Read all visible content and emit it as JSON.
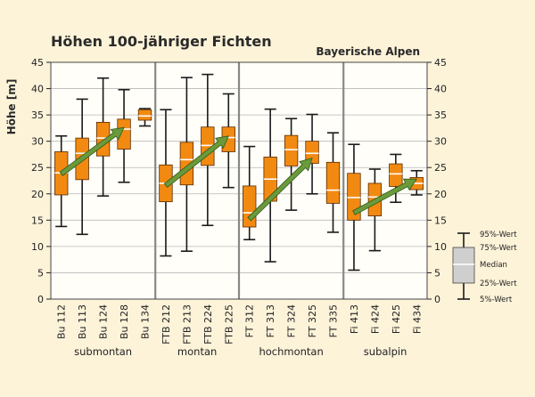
{
  "chart_data": {
    "type": "box",
    "title": "Höhen 100-jähriger Fichten",
    "subtitle": "Bayerische Alpen",
    "ylabel": "Höhe [m]",
    "ylim": [
      0,
      45
    ],
    "yticks": [
      0,
      5,
      10,
      15,
      20,
      25,
      30,
      35,
      40,
      45
    ],
    "grid": true,
    "colors": {
      "box": "#f28a12",
      "box_stroke": "#5a2a00",
      "median": "#ffffff",
      "whisker": "#1a1a1a",
      "trend": "#6a9a3a",
      "trend_stroke": "#2f5a1a",
      "plot_bg": "#fffef8",
      "grid": "#b8b8b8",
      "legend_box": "#cfcfcf"
    },
    "categories": [
      "Bu 112",
      "Bu 113",
      "Bu 124",
      "Bu 128",
      "Bu 134",
      "FTB 212",
      "FTB 213",
      "FTB 224",
      "FTB 225",
      "FT 312",
      "FT 313",
      "FT 324",
      "FT 325",
      "FT 335",
      "Fi 413",
      "Fi 424",
      "Fi 425",
      "Fi 434"
    ],
    "boxes": [
      {
        "label": "Bu 112",
        "p5": 13.8,
        "q1": 19.8,
        "median": 24.0,
        "q3": 28.0,
        "p95": 31.0
      },
      {
        "label": "Bu 113",
        "p5": 12.3,
        "q1": 22.7,
        "median": 27.7,
        "q3": 30.6,
        "p95": 38.0
      },
      {
        "label": "Bu 124",
        "p5": 19.6,
        "q1": 27.2,
        "median": 30.6,
        "q3": 33.6,
        "p95": 42.0
      },
      {
        "label": "Bu 128",
        "p5": 22.2,
        "q1": 28.5,
        "median": 32.3,
        "q3": 34.2,
        "p95": 39.8
      },
      {
        "label": "Bu 134",
        "p5": 32.9,
        "q1": 34.0,
        "median": 34.8,
        "q3": 36.0,
        "p95": 36.2
      },
      {
        "label": "FTB 212",
        "p5": 8.2,
        "q1": 18.5,
        "median": 22.0,
        "q3": 25.5,
        "p95": 36.0
      },
      {
        "label": "FTB 213",
        "p5": 9.1,
        "q1": 21.7,
        "median": 26.5,
        "q3": 29.8,
        "p95": 42.1
      },
      {
        "label": "FTB 224",
        "p5": 14.0,
        "q1": 25.4,
        "median": 29.2,
        "q3": 32.7,
        "p95": 42.7
      },
      {
        "label": "FTB 225",
        "p5": 21.2,
        "q1": 28.0,
        "median": 30.7,
        "q3": 32.7,
        "p95": 39.0
      },
      {
        "label": "FT 312",
        "p5": 11.3,
        "q1": 13.7,
        "median": 16.4,
        "q3": 21.5,
        "p95": 29.0
      },
      {
        "label": "FT 313",
        "p5": 7.1,
        "q1": 18.6,
        "median": 22.8,
        "q3": 27.0,
        "p95": 36.1
      },
      {
        "label": "FT 324",
        "p5": 16.9,
        "q1": 25.3,
        "median": 28.4,
        "q3": 31.1,
        "p95": 34.3
      },
      {
        "label": "FT 325",
        "p5": 20.0,
        "q1": 25.8,
        "median": 27.7,
        "q3": 30.0,
        "p95": 35.1
      },
      {
        "label": "FT 335",
        "p5": 12.7,
        "q1": 18.2,
        "median": 20.7,
        "q3": 26.0,
        "p95": 31.6
      },
      {
        "label": "Fi 413",
        "p5": 5.5,
        "q1": 15.0,
        "median": 19.3,
        "q3": 23.9,
        "p95": 29.4
      },
      {
        "label": "Fi 424",
        "p5": 9.2,
        "q1": 15.8,
        "median": 19.4,
        "q3": 22.0,
        "p95": 24.7
      },
      {
        "label": "Fi 425",
        "p5": 18.4,
        "q1": 21.4,
        "median": 23.8,
        "q3": 25.7,
        "p95": 27.5
      },
      {
        "label": "Fi 434",
        "p5": 19.8,
        "q1": 20.8,
        "median": 22.0,
        "q3": 23.1,
        "p95": 24.4
      }
    ],
    "zones": [
      {
        "label": "submontan",
        "from": 0,
        "to": 4
      },
      {
        "label": "montan",
        "from": 5,
        "to": 8
      },
      {
        "label": "hochmontan",
        "from": 9,
        "to": 13
      },
      {
        "label": "subalpin",
        "from": 14,
        "to": 17
      }
    ],
    "trends": [
      {
        "from": {
          "x": "Bu 112",
          "y": 23.8
        },
        "to": {
          "x": "Bu 128",
          "y": 32.6
        }
      },
      {
        "from": {
          "x": "FTB 212",
          "y": 21.6
        },
        "to": {
          "x": "FTB 225",
          "y": 31.0
        }
      },
      {
        "from": {
          "x": "FT 312",
          "y": 15.2
        },
        "to": {
          "x": "FT 325",
          "y": 26.8
        }
      },
      {
        "from": {
          "x": "Fi 413",
          "y": 16.4
        },
        "to": {
          "x": "Fi 434",
          "y": 22.8
        }
      }
    ],
    "legend": {
      "p95": "95%-Wert",
      "q3": "75%-Wert",
      "median": "Median",
      "q1": "25%-Wert",
      "p5": "5%-Wert"
    }
  }
}
